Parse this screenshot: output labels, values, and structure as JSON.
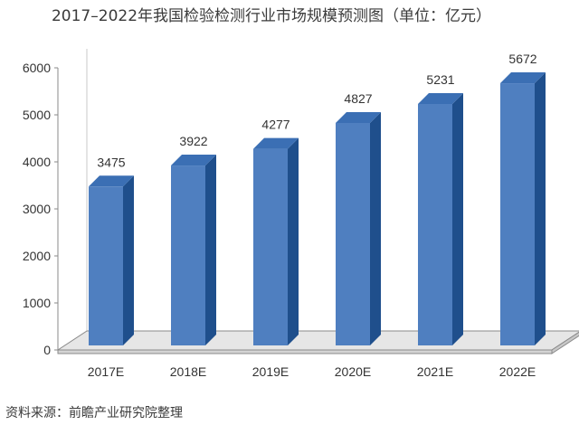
{
  "chart_data": {
    "type": "bar",
    "title": "2017–2022年我国检验检测行业市场规模预测图（单位：亿元）",
    "categories": [
      "2017E",
      "2018E",
      "2019E",
      "2020E",
      "2021E",
      "2022E"
    ],
    "values": [
      3475,
      3922,
      4277,
      4827,
      5231,
      5672
    ],
    "data_labels": [
      "3475",
      "3922",
      "4277",
      "4827",
      "5231",
      "5672"
    ],
    "yticks": [
      "0",
      "1000",
      "2000",
      "3000",
      "4000",
      "5000",
      "6000"
    ],
    "ylim": [
      0,
      6000
    ],
    "grid": false,
    "legend": "none",
    "style": "3d-column",
    "colors": {
      "bar_front": "#4f7fc0",
      "bar_side": "#1f4f8c",
      "bar_top": "#3b6fb4",
      "floor": "#e6e6e6"
    }
  },
  "source": "资料来源：前瞻产业研究院整理"
}
